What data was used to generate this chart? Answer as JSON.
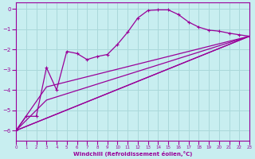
{
  "xlabel": "Windchill (Refroidissement éolien,°C)",
  "bg_color": "#c8eef0",
  "grid_color": "#aad8da",
  "line_color": "#990099",
  "xmin": 0,
  "xmax": 23,
  "ymin": -6.5,
  "ymax": 0.3,
  "yticks": [
    0,
    -1,
    -2,
    -3,
    -4,
    -5,
    -6
  ],
  "xticks": [
    0,
    1,
    2,
    3,
    4,
    5,
    6,
    7,
    8,
    9,
    10,
    11,
    12,
    13,
    14,
    15,
    16,
    17,
    18,
    19,
    20,
    21,
    22,
    23
  ],
  "lines": [
    {
      "x": [
        0,
        1,
        2,
        3,
        4,
        5,
        6,
        7,
        8,
        9,
        10,
        11,
        12,
        13,
        14,
        15,
        16,
        17,
        18,
        19,
        20,
        21,
        22,
        23
      ],
      "y": [
        -6.0,
        -5.3,
        -5.3,
        -2.9,
        -4.0,
        -2.1,
        -2.2,
        -2.5,
        -2.35,
        -2.25,
        -1.75,
        -1.15,
        -0.45,
        -0.08,
        -0.05,
        -0.05,
        -0.28,
        -0.65,
        -0.9,
        -1.05,
        -1.1,
        -1.2,
        -1.28,
        -1.35
      ],
      "marker": true
    },
    {
      "x": [
        0,
        23
      ],
      "y": [
        -6.0,
        -1.35
      ],
      "marker": false
    },
    {
      "x": [
        0,
        23
      ],
      "y": [
        -6.0,
        -1.35
      ],
      "marker": false
    },
    {
      "x": [
        0,
        3,
        23
      ],
      "y": [
        -6.0,
        -3.85,
        -1.35
      ],
      "marker": false
    },
    {
      "x": [
        0,
        3,
        23
      ],
      "y": [
        -6.0,
        -4.5,
        -1.35
      ],
      "marker": false
    }
  ]
}
